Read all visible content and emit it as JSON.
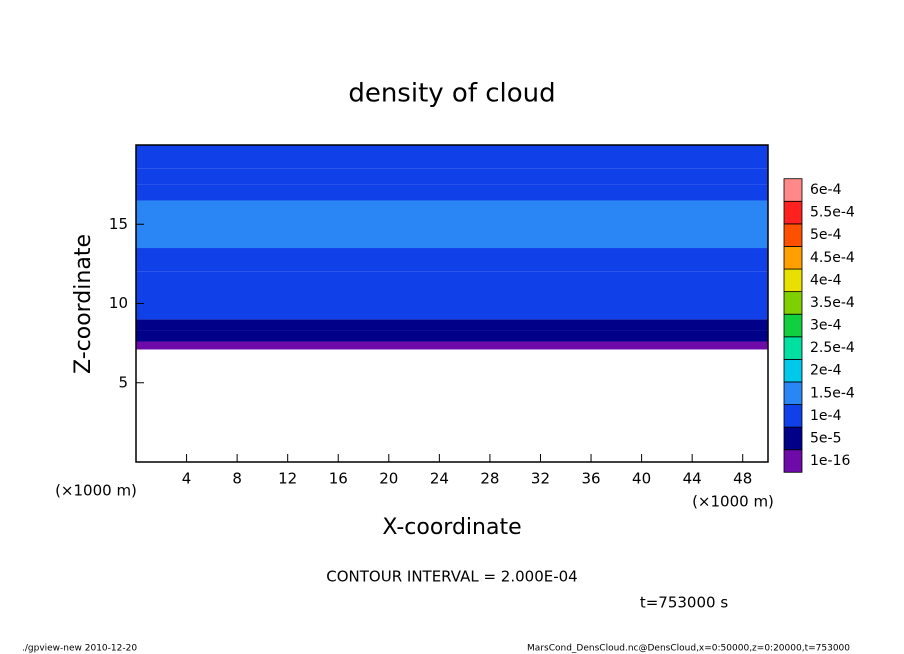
{
  "chart_data": {
    "type": "contour",
    "title": "density of cloud",
    "xlabel": "X-coordinate",
    "ylabel": "Z-coordinate",
    "x_unit_left": "(×1000 m)",
    "x_unit_right": "(×1000 m)",
    "xlim": [
      0,
      50
    ],
    "ylim": [
      0,
      20
    ],
    "xticks": [
      4,
      8,
      12,
      16,
      20,
      24,
      28,
      32,
      36,
      40,
      44,
      48
    ],
    "yticks": [
      5,
      10,
      15
    ],
    "profile": {
      "z": [
        7.1,
        7.6,
        8.3,
        9.0,
        10.0,
        12.0,
        13.5,
        16.5,
        17.5,
        18.5
      ],
      "values": [
        3e-05,
        6e-05,
        8e-05,
        0.000105,
        0.00012,
        0.00013,
        0.00016,
        0.00013,
        0.000125,
        0.00011
      ]
    },
    "levels": [
      {
        "value": 1e-16,
        "label": "1e-16"
      },
      {
        "value": 5e-05,
        "label": "5e-5"
      },
      {
        "value": 0.0001,
        "label": "1e-4"
      },
      {
        "value": 0.00015,
        "label": "1.5e-4"
      },
      {
        "value": 0.0002,
        "label": "2e-4"
      },
      {
        "value": 0.00025,
        "label": "2.5e-4"
      },
      {
        "value": 0.0003,
        "label": "3e-4"
      },
      {
        "value": 0.00035,
        "label": "3.5e-4"
      },
      {
        "value": 0.0004,
        "label": "4e-4"
      },
      {
        "value": 0.00045,
        "label": "4.5e-4"
      },
      {
        "value": 0.0005,
        "label": "5e-4"
      },
      {
        "value": 0.00055,
        "label": "5.5e-4"
      },
      {
        "value": 0.0006,
        "label": "6e-4"
      }
    ],
    "colors": [
      "#6e0aa8",
      "#000088",
      "#1040e8",
      "#2a86f4",
      "#00c8e8",
      "#00e0a0",
      "#10d040",
      "#80d000",
      "#e8e000",
      "#ffa000",
      "#ff5000",
      "#ff2020",
      "#ff8888"
    ],
    "contour_interval": "CONTOUR INTERVAL = 2.000E-04",
    "time_label": "t=753000 s",
    "footer_left": "./gpview-new   2010-12-20",
    "footer_right": "MarsCond_DensCloud.nc@DensCloud,x=0:50000,z=0:20000,t=753000"
  }
}
